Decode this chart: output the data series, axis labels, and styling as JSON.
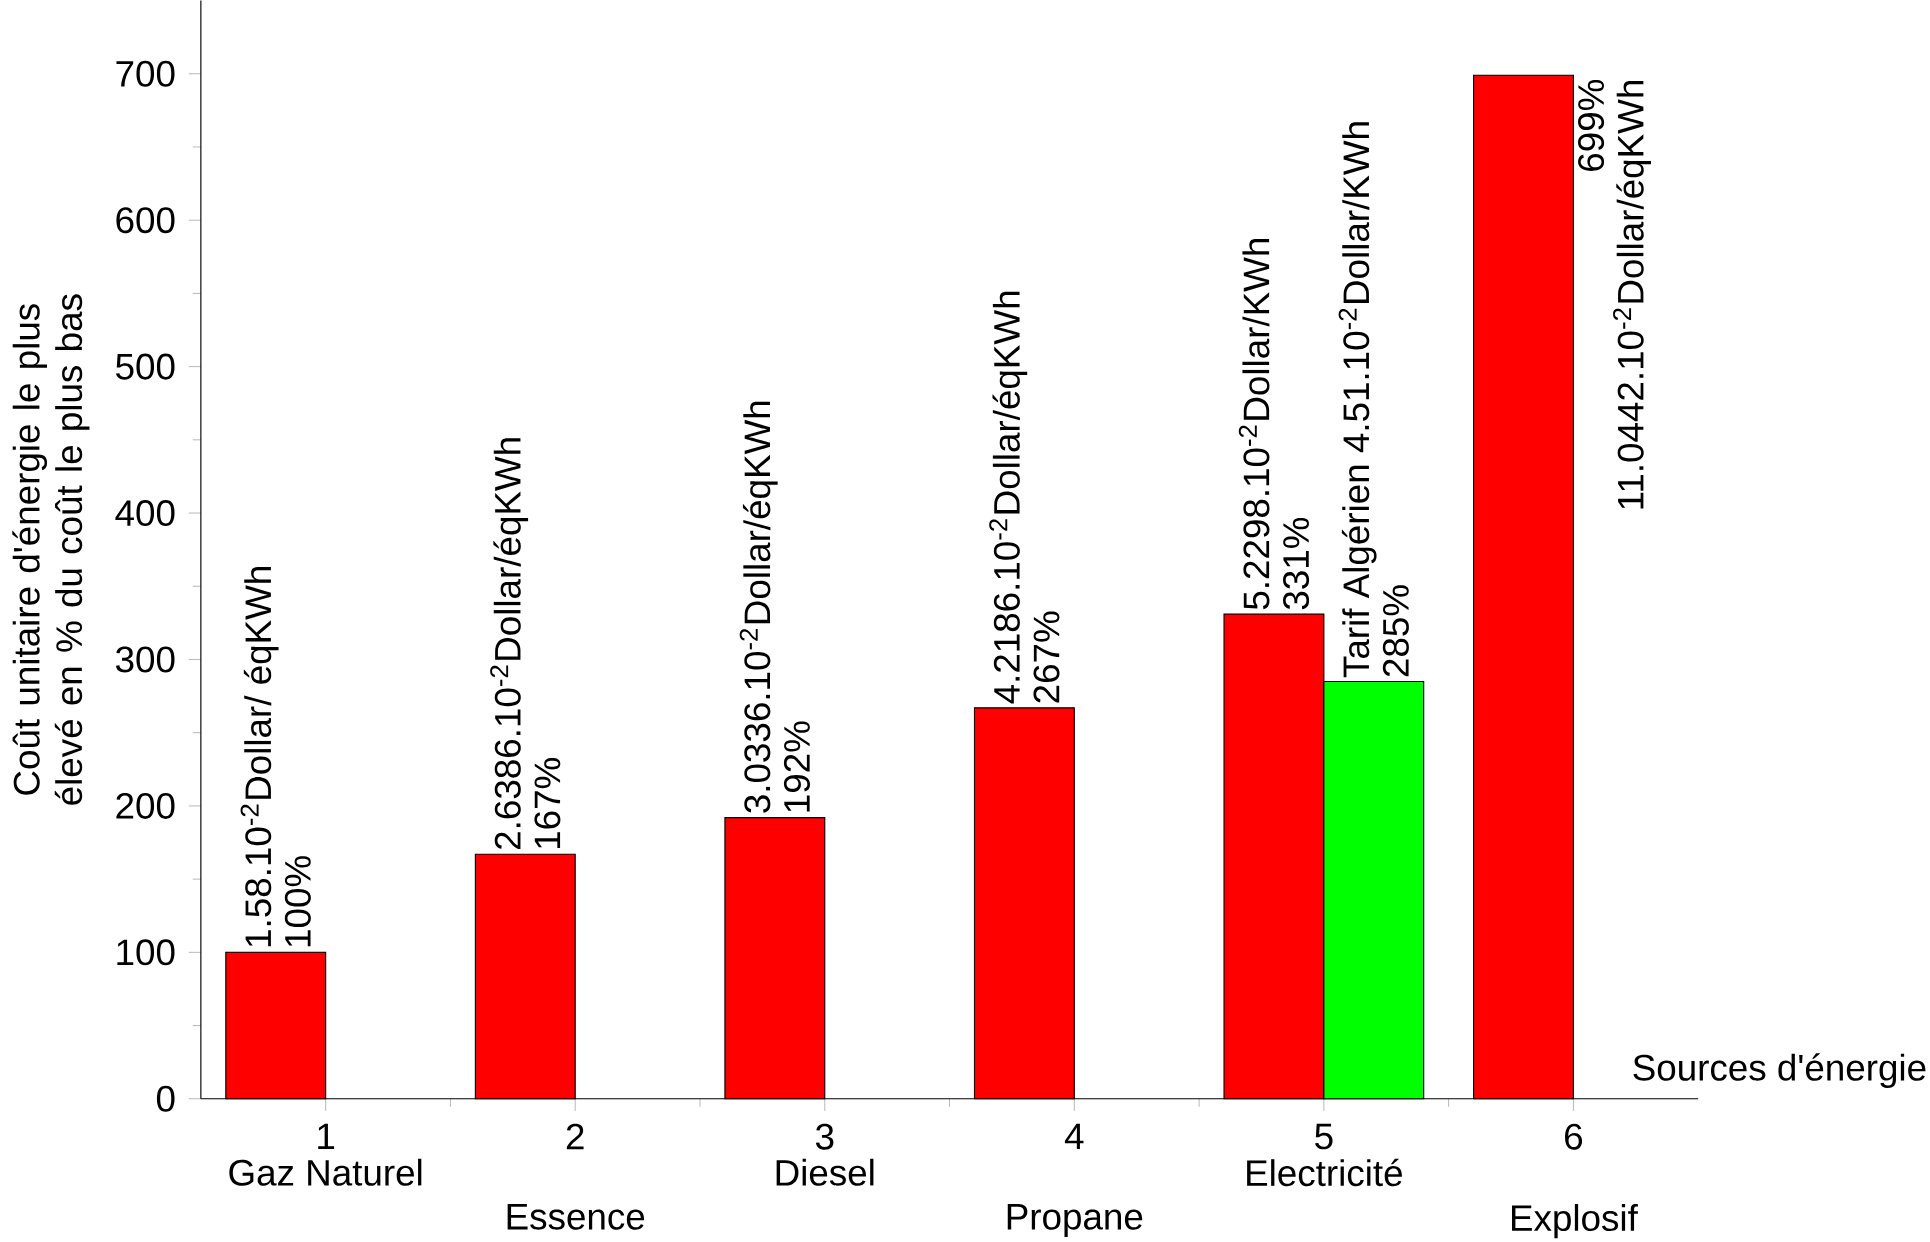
{
  "chart_data": {
    "type": "bar",
    "xlabel": "Sources d'énergie",
    "ylabel": "Coût unitaire d'énergie le plus élevé en % du coût le plus bas",
    "x": [
      1,
      2,
      3,
      4,
      5,
      6
    ],
    "series": [
      {
        "color": "#ff0000",
        "values": [
          100,
          167,
          192,
          267,
          331,
          699
        ],
        "value_labels": [
          "100%",
          "167%",
          "192%",
          "267%",
          "331%",
          "699%"
        ]
      },
      {
        "color": "#00ff00",
        "values": [
          null,
          null,
          null,
          null,
          285,
          null
        ],
        "value_labels": [
          null,
          null,
          null,
          null,
          "285%",
          null
        ]
      }
    ],
    "xlim": [
      0.5,
      6.5
    ],
    "ylim": [
      0,
      750
    ],
    "xticks": [
      1,
      2,
      3,
      4,
      5,
      6
    ],
    "yticks": [
      0,
      100,
      200,
      300,
      400,
      500,
      600,
      700
    ],
    "annotations": [
      {
        "text": "1.58.10$^{-2}$Dollar/ éqKWh",
        "x": 1,
        "y": 100
      },
      {
        "text": "2.6386.10$^{-2}$Dollar/éqKWh",
        "x": 2,
        "y": 167
      },
      {
        "text": "3.0336.10$^{-2}$Dollar/éqKWh",
        "x": 3,
        "y": 192
      },
      {
        "text": "4.2186.10$^{-2}$Dollar/éqKWh",
        "x": 4,
        "y": 267
      },
      {
        "text": "5.2298.10$^{-2}$Dollar/KWh",
        "x": 5,
        "y": 331
      },
      {
        "text": "Tarif Algérien 4.51.10$^{-2}$Dollar/KWh",
        "x": 5,
        "y": 285
      },
      {
        "text": "11.0442.10$^{-2}$Dollar/éqKWh",
        "x": 6,
        "y": 699
      },
      {
        "text": "Gaz Naturel",
        "x": 1,
        "y": 0
      },
      {
        "text": "Essence",
        "x": 2,
        "y": 0
      },
      {
        "text": "Diesel",
        "x": 3,
        "y": 0
      },
      {
        "text": "Propane",
        "x": 4,
        "y": 0
      },
      {
        "text": "Electricité",
        "x": 5,
        "y": 0
      },
      {
        "text": "Explosif",
        "x": 6,
        "y": 0
      }
    ]
  }
}
